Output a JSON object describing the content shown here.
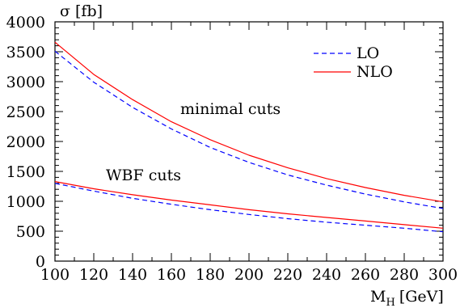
{
  "chart_data": {
    "type": "line",
    "ylabel": "σ [fb]",
    "xlabel": "M",
    "xlabel_sub": "H",
    "xlabel_unit": "[GeV]",
    "xlim": [
      100,
      300
    ],
    "ylim": [
      0,
      4000
    ],
    "x_ticks": [
      100,
      120,
      140,
      160,
      180,
      200,
      220,
      240,
      260,
      280,
      300
    ],
    "y_ticks": [
      0,
      500,
      1000,
      1500,
      2000,
      2500,
      3000,
      3500,
      4000
    ],
    "grid": false,
    "legend_position": "top-right",
    "legend": [
      {
        "label": "LO",
        "color": "#0000ff",
        "style": "dashed"
      },
      {
        "label": "NLO",
        "color": "#ff0000",
        "style": "solid"
      }
    ],
    "annotations": [
      {
        "text": "minimal cuts",
        "x": 212,
        "y": 2500
      },
      {
        "text": "WBF cuts",
        "x": 132,
        "y": 1390
      }
    ],
    "x": [
      100,
      120,
      140,
      160,
      180,
      200,
      220,
      240,
      260,
      280,
      300
    ],
    "series": [
      {
        "name": "LO",
        "group": "minimal cuts",
        "color": "#0000ff",
        "style": "dashed",
        "values": [
          3510,
          2990,
          2570,
          2210,
          1900,
          1650,
          1440,
          1270,
          1120,
          990,
          880
        ]
      },
      {
        "name": "NLO",
        "group": "minimal cuts",
        "color": "#ff0000",
        "style": "solid",
        "values": [
          3660,
          3120,
          2700,
          2330,
          2030,
          1770,
          1560,
          1380,
          1230,
          1100,
          990
        ]
      },
      {
        "name": "LO",
        "group": "WBF cuts",
        "color": "#0000ff",
        "style": "dashed",
        "values": [
          1300,
          1170,
          1050,
          950,
          860,
          780,
          710,
          650,
          600,
          550,
          490
        ]
      },
      {
        "name": "NLO",
        "group": "WBF cuts",
        "color": "#ff0000",
        "style": "solid",
        "values": [
          1330,
          1210,
          1110,
          1020,
          940,
          860,
          790,
          730,
          670,
          610,
          550
        ]
      }
    ]
  }
}
